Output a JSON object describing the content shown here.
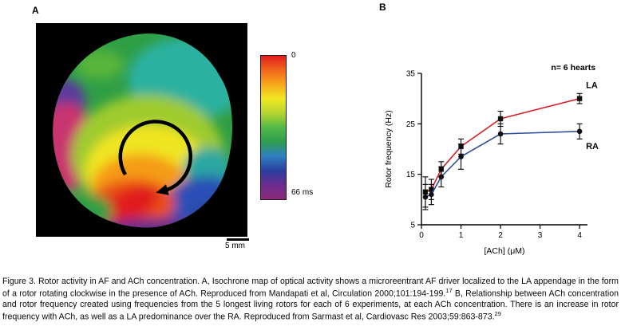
{
  "figure": {
    "panel_a": {
      "label": "A",
      "colorbar": {
        "top_label": "0",
        "bottom_label": "66 ms",
        "colors": [
          "#e31d1d",
          "#f2661c",
          "#f7a81b",
          "#f0e822",
          "#b5d431",
          "#53b848",
          "#2e9e4f",
          "#2f7fc1",
          "#2b3f9f",
          "#6b2d8f",
          "#8c2a77"
        ]
      },
      "scale_bar_label": "5 mm"
    },
    "panel_b": {
      "label": "B"
    },
    "caption": {
      "part1": "Figure 3. Rotor activity in AF and ACh concentration. A, Isochrone map of optical activity shows a microreentrant AF driver localized to the LA appendage in the form of a rotor rotating clockwise in the presence of ACh. Reproduced from Mandapati et al, Circulation 2000;101:194-199.",
      "ref1": "17",
      "part2": " B, Relationship between ACh concentration and rotor frequency created using frequencies from the 5 longest living rotors for each of 6 experiments, at each ACh concentration. There is an increase in rotor frequency with ACh, as well as a LA predominance over the RA. Reproduced from Sarmast et al, Cardiovasc Res 2003;59:863-873.",
      "ref2": "29"
    }
  },
  "chart_data": {
    "type": "line",
    "title": "",
    "xlabel": "[ACh] (μM)",
    "ylabel": "Rotor frequency (Hz)",
    "annotation": "n= 6 hearts",
    "xlim": [
      0,
      4.2
    ],
    "ylim": [
      5,
      35
    ],
    "x_ticks": [
      0,
      1,
      2,
      3,
      4
    ],
    "y_ticks": [
      5,
      15,
      25,
      35
    ],
    "grid": false,
    "legend_position": "end-of-lines",
    "x": [
      0.1,
      0.25,
      0.5,
      1,
      2,
      4
    ],
    "series": [
      {
        "name": "LA",
        "line_color": "#d42127",
        "marker": "square",
        "marker_color": "#111111",
        "label_dy": -13,
        "values": [
          11.5,
          12,
          16,
          20.5,
          26,
          30
        ],
        "errors": [
          3,
          2,
          1.5,
          1.5,
          1.5,
          1
        ]
      },
      {
        "name": "RA",
        "line_color": "#2e4e9e",
        "marker": "circle",
        "marker_color": "#111111",
        "label_dy": 22,
        "values": [
          10.5,
          11,
          14.5,
          18.5,
          23,
          23.5
        ],
        "errors": [
          2.5,
          2,
          2,
          2.5,
          2,
          1.5
        ]
      }
    ]
  }
}
